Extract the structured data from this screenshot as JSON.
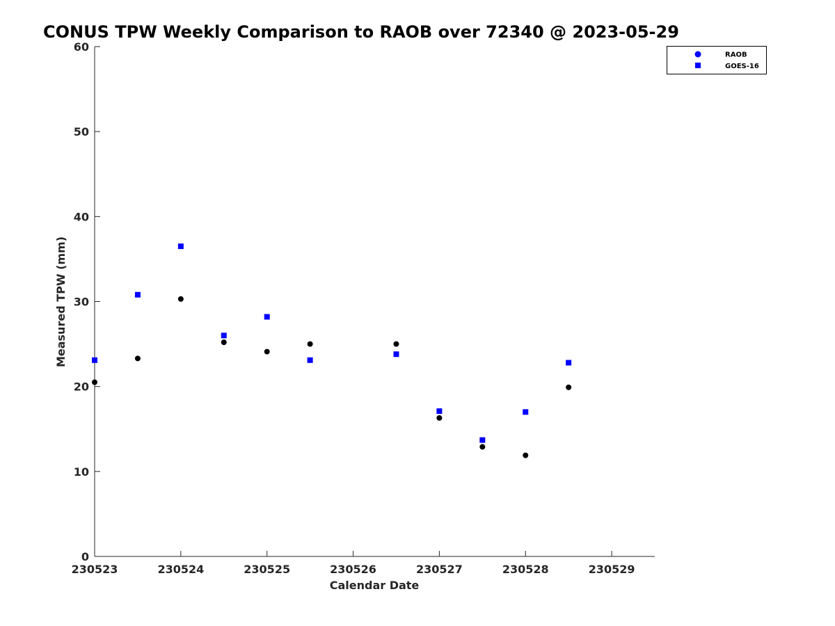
{
  "chart_data": {
    "type": "scatter",
    "title": "CONUS TPW Weekly Comparison to RAOB over 72340 @ 2023-05-29",
    "xlabel": "Calendar Date",
    "ylabel": "Measured TPW (mm)",
    "xlim": [
      230523,
      230529.5
    ],
    "ylim": [
      0,
      60
    ],
    "xticks": [
      230523,
      230524,
      230525,
      230526,
      230527,
      230528,
      230529
    ],
    "xtick_labels": [
      "230523",
      "230524",
      "230525",
      "230526",
      "230527",
      "230528",
      "230529"
    ],
    "yticks": [
      0,
      10,
      20,
      30,
      40,
      50,
      60
    ],
    "ytick_labels": [
      "0",
      "10",
      "20",
      "30",
      "40",
      "50",
      "60"
    ],
    "grid": false,
    "legend_position": "top-right",
    "series": [
      {
        "name": "RAOB",
        "marker": "circle",
        "color": "#000000",
        "legend_color": "#0000ff",
        "x": [
          230523.0,
          230523.5,
          230524.0,
          230524.5,
          230525.0,
          230525.5,
          230526.5,
          230527.0,
          230527.5,
          230528.0,
          230528.5
        ],
        "y": [
          20.5,
          23.3,
          30.3,
          25.2,
          24.1,
          25.0,
          25.0,
          16.3,
          12.9,
          11.9,
          19.9
        ]
      },
      {
        "name": "GOES-16",
        "marker": "square",
        "color": "#0000ff",
        "legend_color": "#0000ff",
        "x": [
          230523.0,
          230523.5,
          230524.0,
          230524.5,
          230525.0,
          230525.5,
          230526.5,
          230527.0,
          230527.5,
          230528.0,
          230528.5
        ],
        "y": [
          23.1,
          30.8,
          36.5,
          26.0,
          28.2,
          23.1,
          23.8,
          17.1,
          13.7,
          17.0,
          22.8
        ]
      }
    ]
  }
}
